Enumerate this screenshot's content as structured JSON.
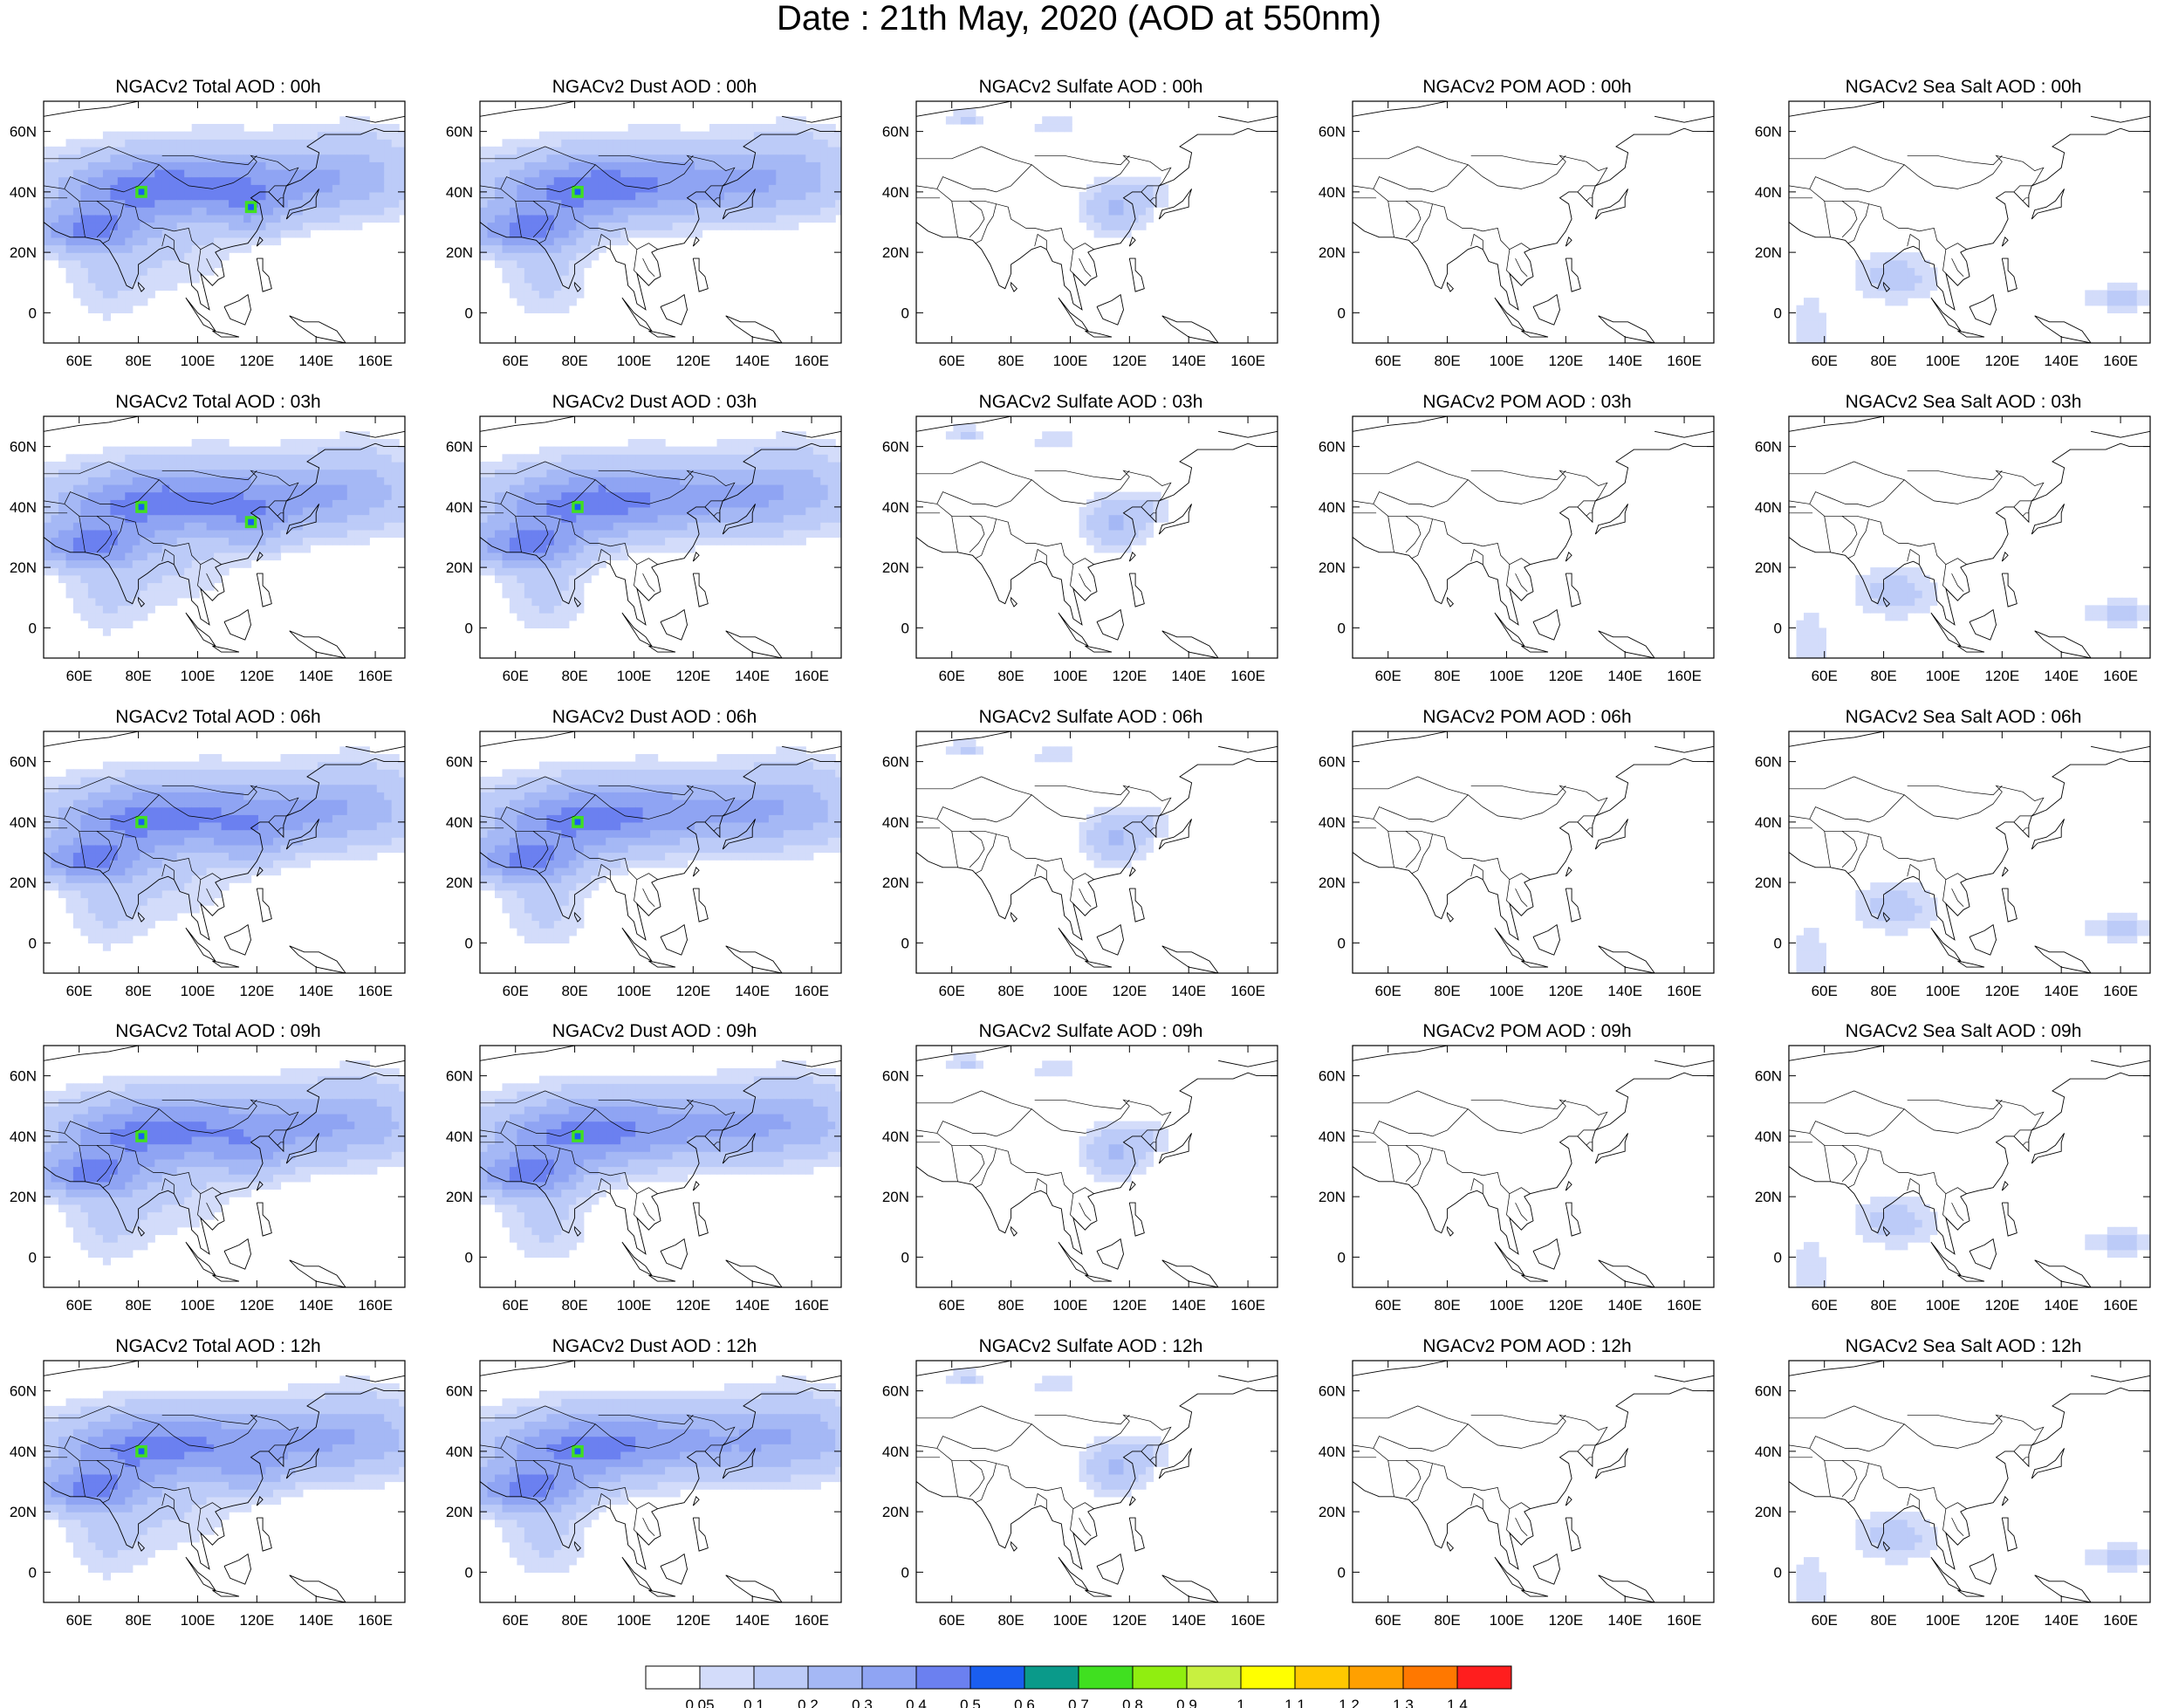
{
  "figure_title": "Date : 21th May, 2020 (AOD at 550nm)",
  "chart_data": {
    "type": "heatmap",
    "title": "Date : 21th May, 2020 (AOD at 550nm)",
    "panels": [
      {
        "title": "NGACv2 Total AOD : 00h",
        "species": "total",
        "hour": 0
      },
      {
        "title": "NGACv2 Dust AOD : 00h",
        "species": "dust",
        "hour": 0
      },
      {
        "title": "NGACv2 Sulfate AOD : 00h",
        "species": "sulfate",
        "hour": 0
      },
      {
        "title": "NGACv2 POM AOD : 00h",
        "species": "pom",
        "hour": 0
      },
      {
        "title": "NGACv2 Sea Salt AOD : 00h",
        "species": "seasalt",
        "hour": 0
      },
      {
        "title": "NGACv2 Total AOD : 03h",
        "species": "total",
        "hour": 3
      },
      {
        "title": "NGACv2 Dust AOD : 03h",
        "species": "dust",
        "hour": 3
      },
      {
        "title": "NGACv2 Sulfate AOD : 03h",
        "species": "sulfate",
        "hour": 3
      },
      {
        "title": "NGACv2 POM AOD : 03h",
        "species": "pom",
        "hour": 3
      },
      {
        "title": "NGACv2 Sea Salt AOD : 03h",
        "species": "seasalt",
        "hour": 3
      },
      {
        "title": "NGACv2 Total AOD : 06h",
        "species": "total",
        "hour": 6
      },
      {
        "title": "NGACv2 Dust AOD : 06h",
        "species": "dust",
        "hour": 6
      },
      {
        "title": "NGACv2 Sulfate AOD : 06h",
        "species": "sulfate",
        "hour": 6
      },
      {
        "title": "NGACv2 POM AOD : 06h",
        "species": "pom",
        "hour": 6
      },
      {
        "title": "NGACv2 Sea Salt AOD : 06h",
        "species": "seasalt",
        "hour": 6
      },
      {
        "title": "NGACv2 Total AOD : 09h",
        "species": "total",
        "hour": 9
      },
      {
        "title": "NGACv2 Dust AOD : 09h",
        "species": "dust",
        "hour": 9
      },
      {
        "title": "NGACv2 Sulfate AOD : 09h",
        "species": "sulfate",
        "hour": 9
      },
      {
        "title": "NGACv2 POM AOD : 09h",
        "species": "pom",
        "hour": 9
      },
      {
        "title": "NGACv2 Sea Salt  AOD : 09h",
        "species": "seasalt",
        "hour": 9
      },
      {
        "title": "NGACv2 Total AOD  : 12h",
        "species": "total",
        "hour": 12
      },
      {
        "title": "NGACv2 Dust AOD : 12h",
        "species": "dust",
        "hour": 12
      },
      {
        "title": "NGACv2 Sulfate AOD : 12h",
        "species": "sulfate",
        "hour": 12
      },
      {
        "title": "NGACv2 POM  AOD : 12h",
        "species": "pom",
        "hour": 12
      },
      {
        "title": "NGACv2 Sea Salt  AOD : 12h",
        "species": "seasalt",
        "hour": 12
      }
    ],
    "x_ticks": [
      60,
      80,
      100,
      120,
      140,
      160
    ],
    "x_tick_labels": [
      "60E",
      "80E",
      "100E",
      "120E",
      "140E",
      "160E"
    ],
    "xlim": [
      48,
      170
    ],
    "y_ticks": [
      0,
      20,
      40,
      60
    ],
    "y_tick_labels": [
      "0",
      "20N",
      "40N",
      "60N"
    ],
    "ylim": [
      -10,
      70
    ],
    "colorbar": {
      "levels": [
        "0.05",
        "0.1",
        "0.2",
        "0.3",
        "0.4",
        "0.5",
        "0.6",
        "0.7",
        "0.8",
        "0.9",
        "1",
        "1.1",
        "1.2",
        "1.3",
        "1.4"
      ],
      "colors": [
        "#ffffff",
        "#d3dcfa",
        "#bccbf8",
        "#a5b8f5",
        "#8fa4f3",
        "#6b80f0",
        "#1a5ef0",
        "#0a9a8a",
        "#40e020",
        "#90ee10",
        "#c8f040",
        "#ffff00",
        "#ffc800",
        "#ffa000",
        "#ff7800",
        "#ff1e1e"
      ]
    },
    "grid": false,
    "legend_position": "bottom"
  }
}
